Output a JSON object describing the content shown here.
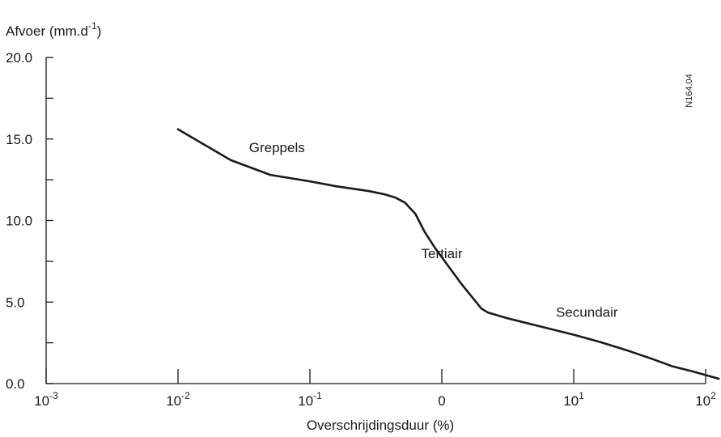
{
  "chart_data": {
    "type": "line",
    "ylabel": {
      "text": "Afvoer (mm.d",
      "sup": "-1",
      "close": ")"
    },
    "xlabel": "Overschrijdingsduur (%)",
    "code": "N164.04",
    "ylim": [
      0,
      20
    ],
    "y_ticks": [
      {
        "value": 0,
        "label": "0.0"
      },
      {
        "value": 5,
        "label": "5.0"
      },
      {
        "value": 10,
        "label": "10.0"
      },
      {
        "value": 15,
        "label": "15.0"
      },
      {
        "value": 20,
        "label": "20.0"
      }
    ],
    "y_minor_ticks": [
      2.5,
      7.5,
      12.5,
      17.5
    ],
    "x_ticks": [
      {
        "pos": 0,
        "base": "10",
        "sup": "-3"
      },
      {
        "pos": 1,
        "base": "10",
        "sup": "-2"
      },
      {
        "pos": 2,
        "base": "10",
        "sup": "-1"
      },
      {
        "pos": 3,
        "base": "0",
        "sup": ""
      },
      {
        "pos": 4,
        "base": "10",
        "sup": "1"
      },
      {
        "pos": 5,
        "base": "10",
        "sup": "2"
      }
    ],
    "series": [
      {
        "color": "#1a1a1a",
        "points": [
          [
            1.0,
            15.6
          ],
          [
            1.4,
            13.7
          ],
          [
            1.7,
            12.8
          ],
          [
            2.0,
            12.4
          ],
          [
            2.2,
            12.1
          ],
          [
            2.45,
            11.8
          ],
          [
            2.57,
            11.6
          ],
          [
            2.65,
            11.4
          ],
          [
            2.72,
            11.1
          ],
          [
            2.8,
            10.4
          ],
          [
            2.87,
            9.3
          ],
          [
            2.95,
            8.3
          ],
          [
            3.05,
            7.2
          ],
          [
            3.15,
            6.1
          ],
          [
            3.2,
            5.6
          ],
          [
            3.3,
            4.6
          ],
          [
            3.35,
            4.35
          ],
          [
            3.5,
            4.0
          ],
          [
            3.7,
            3.6
          ],
          [
            4.0,
            3.0
          ],
          [
            4.2,
            2.55
          ],
          [
            4.4,
            2.05
          ],
          [
            4.6,
            1.5
          ],
          [
            4.75,
            1.05
          ],
          [
            4.9,
            0.75
          ],
          [
            5.1,
            0.3
          ]
        ]
      }
    ],
    "annotations": [
      {
        "text": "Greppels",
        "x": 1.75,
        "y": 14.2
      },
      {
        "text": "Tertiair",
        "x": 3.0,
        "y": 7.7
      },
      {
        "text": "Secundair",
        "x": 4.1,
        "y": 4.1
      }
    ]
  }
}
